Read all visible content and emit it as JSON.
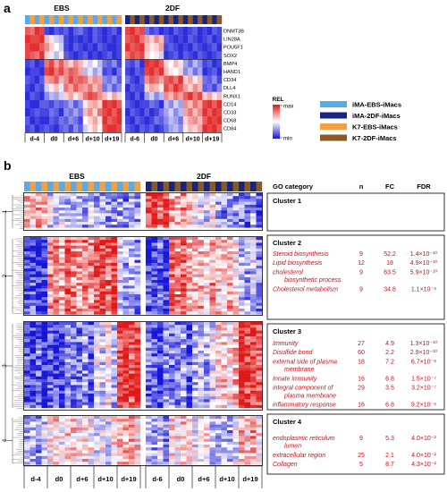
{
  "figure": {
    "panel_a_label": "a",
    "panel_b_label": "b"
  },
  "panel_a": {
    "group_left": "EBS",
    "group_right": "2DF",
    "genes": [
      "DNMT3B",
      "LIN28A",
      "POU5F1",
      "SOX2",
      "BMP4",
      "HAND1",
      "CD34",
      "DLL4",
      "RUNX1",
      "CD14",
      "CD33",
      "CD68",
      "CD84"
    ],
    "timepoints_left": [
      "d-4",
      "d0",
      "d+6",
      "d+10",
      "d+19"
    ],
    "timepoints_right": [
      "d-6",
      "d0",
      "d+6",
      "d+10",
      "d+19"
    ],
    "scale_label": "REL",
    "scale_high": "max",
    "scale_low": "min"
  },
  "legend": [
    {
      "label": "iMA-EBS-iMacs",
      "color": "#5aaae8"
    },
    {
      "label": "iMA-2DF-iMacs",
      "color": "#1a237e"
    },
    {
      "label": "K7-EBS-iMacs",
      "color": "#f5a040"
    },
    {
      "label": "K7-2DF-iMacs",
      "color": "#8a5a26"
    }
  ],
  "panel_b": {
    "group_left": "EBS",
    "group_right": "2DF",
    "timepoints_left": [
      "d-4",
      "d0",
      "d+6",
      "d+10",
      "d+19"
    ],
    "timepoints_right": [
      "d-6",
      "d0",
      "d+6",
      "d+10",
      "d+19"
    ],
    "cluster_numbers": [
      "1",
      "2",
      "3",
      "4"
    ],
    "table_headers": {
      "category": "GO category",
      "n": "n",
      "fc": "FC",
      "fdr": "FDR"
    },
    "clusters": [
      {
        "title": "Cluster 1",
        "rows": []
      },
      {
        "title": "Cluster 2",
        "rows": [
          {
            "term": "Steroid biosynthesis",
            "n": "9",
            "fc": "52.2",
            "fdr": "1.4×10⁻¹⁰"
          },
          {
            "term": "Lipid biosynthesis",
            "n": "12",
            "fc": "18",
            "fdr": "4.9×10⁻¹⁰"
          },
          {
            "term": "cholesterol",
            "term2": "biosynthetic process",
            "n": "9",
            "fc": "63.5",
            "fdr": "5.9×10⁻¹⁰"
          },
          {
            "term": "Cholesterol metabolism",
            "n": "9",
            "fc": "34.8",
            "fdr": "1.1×10⁻⁹"
          }
        ]
      },
      {
        "title": "Cluster 3",
        "rows": [
          {
            "term": "Immunity",
            "n": "27",
            "fc": "4.9",
            "fdr": "1.3×10⁻¹⁰"
          },
          {
            "term": "Disulfide bond",
            "n": "60",
            "fc": "2.2",
            "fdr": "2.9×10⁻¹⁰"
          },
          {
            "term": "external side of plasma",
            "term2": "membrane",
            "n": "18",
            "fc": "7.2",
            "fdr": "6.7×10⁻⁸"
          },
          {
            "term": "Innate immunity",
            "n": "16",
            "fc": "6.8",
            "fdr": "1.5×10⁻⁷"
          },
          {
            "term": "integral component of",
            "term2": "plasma membrane",
            "n": "29",
            "fc": "3.5",
            "fdr": "3.2×10⁻⁷"
          },
          {
            "term": "inflammatory response",
            "n": "16",
            "fc": "6.8",
            "fdr": "9.2×10⁻⁶"
          }
        ]
      },
      {
        "title": "Cluster 4",
        "rows": [
          {
            "term": "endoplasmic reticulum",
            "term2": "lumen",
            "n": "9",
            "fc": "5.3",
            "fdr": "4.0×10⁻²"
          },
          {
            "term": "extracellular region",
            "n": "25",
            "fc": "2.1",
            "fdr": "4.0×10⁻²"
          },
          {
            "term": "Collagen",
            "n": "5",
            "fc": "8.7",
            "fdr": "4.3×10⁻²"
          }
        ]
      }
    ]
  },
  "colors": {
    "heat_high": "#e01818",
    "heat_mid": "#ffffff",
    "heat_low": "#1616d8",
    "go_text": "#c0141c"
  },
  "chart_data": [
    {
      "type": "heatmap",
      "title": "",
      "xlabel": "",
      "ylabel": "",
      "rows": [
        "DNMT3B",
        "LIN28A",
        "POU5F1",
        "SOX2",
        "BMP4",
        "HAND1",
        "CD34",
        "DLL4",
        "RUNX1",
        "CD14",
        "CD33",
        "CD68",
        "CD84"
      ],
      "column_groups": [
        {
          "name": "EBS",
          "timepoints": [
            "d-4",
            "d0",
            "d+6",
            "d+10",
            "d+19"
          ],
          "columns_per_timepoint": 4
        },
        {
          "name": "2DF",
          "timepoints": [
            "d-6",
            "d0",
            "d+6",
            "d+10",
            "d+19"
          ],
          "columns_per_timepoint": 4
        }
      ],
      "scale": {
        "label": "REL",
        "range": [
          "min",
          "max"
        ]
      },
      "values_EBS": [
        [
          0.7,
          0.6,
          0.9,
          0.8,
          -0.8,
          -0.9,
          -0.7,
          -0.8,
          -0.7,
          -0.9,
          -0.7,
          -0.6,
          -0.8,
          -0.9,
          -0.7,
          -0.8,
          -0.9,
          -0.8,
          -0.7,
          -0.9
        ],
        [
          0.9,
          0.8,
          0.8,
          0.9,
          0.3,
          0.1,
          -0.2,
          -0.3,
          -0.8,
          -0.9,
          -0.8,
          -0.9,
          -0.8,
          -0.9,
          -0.7,
          -0.8,
          -0.9,
          -0.8,
          -0.9,
          -0.8
        ],
        [
          0.8,
          0.9,
          0.9,
          0.7,
          0.5,
          0.2,
          0.0,
          -0.2,
          -0.8,
          -0.9,
          -0.7,
          -0.8,
          -0.9,
          -0.8,
          -0.9,
          -0.7,
          -0.8,
          -0.9,
          -0.9,
          -0.8
        ],
        [
          0.8,
          0.7,
          0.6,
          0.9,
          0.2,
          -0.1,
          -0.3,
          0.1,
          -0.7,
          -0.8,
          -0.9,
          -0.8,
          -0.7,
          -0.9,
          -0.8,
          -0.9,
          -0.8,
          -0.7,
          -0.9,
          -0.8
        ],
        [
          -0.8,
          -0.7,
          -0.9,
          -0.8,
          0.6,
          0.8,
          0.4,
          0.7,
          0.4,
          0.2,
          0.5,
          0.3,
          0.1,
          -0.2,
          0.0,
          -0.3,
          -0.6,
          -0.7,
          -0.5,
          -0.8
        ],
        [
          -0.9,
          -0.8,
          -0.8,
          -0.9,
          0.8,
          0.9,
          0.6,
          0.8,
          0.5,
          0.7,
          0.6,
          0.4,
          -0.3,
          -0.1,
          -0.4,
          -0.2,
          -0.8,
          -0.7,
          -0.9,
          -0.6
        ],
        [
          -0.7,
          -0.8,
          -0.9,
          -0.7,
          0.4,
          0.5,
          0.7,
          0.3,
          0.5,
          0.8,
          0.6,
          0.7,
          0.6,
          0.3,
          0.5,
          0.4,
          -0.5,
          -0.6,
          -0.4,
          -0.7
        ],
        [
          -0.8,
          -0.9,
          -0.7,
          -0.8,
          -0.2,
          0.1,
          0.3,
          -0.1,
          0.6,
          0.4,
          0.7,
          0.5,
          0.4,
          0.6,
          0.3,
          0.5,
          -0.6,
          -0.4,
          -0.7,
          -0.5
        ],
        [
          -0.9,
          -0.7,
          -0.8,
          -0.9,
          -0.5,
          -0.3,
          -0.4,
          -0.2,
          0.2,
          0.4,
          0.1,
          0.3,
          0.6,
          0.8,
          0.7,
          0.5,
          0.3,
          0.1,
          0.4,
          0.2
        ],
        [
          -0.8,
          -0.9,
          -0.9,
          -0.7,
          -0.7,
          -0.8,
          -0.6,
          -0.7,
          -0.6,
          -0.4,
          -0.7,
          -0.5,
          0.1,
          0.3,
          0.4,
          0.2,
          0.9,
          0.8,
          0.9,
          0.7
        ],
        [
          -0.9,
          -0.8,
          -0.7,
          -0.8,
          -0.8,
          -0.6,
          -0.7,
          -0.9,
          -0.5,
          -0.6,
          -0.4,
          -0.6,
          0.3,
          0.5,
          0.2,
          0.6,
          0.8,
          0.9,
          0.7,
          0.9
        ],
        [
          -0.7,
          -0.9,
          -0.8,
          -0.9,
          -0.9,
          -0.7,
          -0.8,
          -0.6,
          -0.7,
          -0.5,
          -0.6,
          -0.8,
          0.0,
          0.2,
          0.4,
          0.1,
          0.9,
          0.7,
          0.8,
          0.9
        ],
        [
          -0.8,
          -0.7,
          -0.9,
          -0.8,
          -0.7,
          -0.8,
          -0.9,
          -0.7,
          -0.6,
          -0.8,
          -0.5,
          -0.7,
          -0.2,
          0.1,
          0.3,
          0.0,
          0.8,
          0.9,
          0.9,
          0.8
        ]
      ],
      "values_2DF": [
        [
          0.8,
          0.9,
          0.7,
          0.8,
          -0.6,
          -0.8,
          -0.7,
          -0.9,
          -0.8,
          -0.9,
          -0.7,
          -0.8,
          -0.9,
          -0.8,
          -0.7,
          -0.9,
          -0.8,
          -0.9,
          -0.7,
          -0.8
        ],
        [
          0.7,
          0.8,
          0.9,
          0.6,
          0.4,
          0.2,
          0.5,
          0.3,
          -0.7,
          -0.8,
          -0.9,
          -0.8,
          -0.9,
          -0.7,
          -0.8,
          -0.9,
          -0.8,
          -0.7,
          -0.9,
          -0.8
        ],
        [
          0.9,
          0.7,
          0.8,
          0.9,
          0.3,
          0.1,
          0.2,
          0.4,
          -0.8,
          -0.7,
          -0.8,
          -0.9,
          -0.8,
          -0.9,
          -0.7,
          -0.8,
          -0.9,
          -0.8,
          -0.7,
          -0.9
        ],
        [
          0.6,
          0.8,
          0.7,
          0.8,
          0.2,
          0.0,
          0.1,
          -0.2,
          -0.9,
          -0.8,
          -0.7,
          -0.9,
          -0.7,
          -0.8,
          -0.9,
          -0.7,
          -0.8,
          -0.9,
          -0.8,
          -0.7
        ],
        [
          -0.7,
          -0.8,
          -0.6,
          -0.9,
          0.9,
          0.8,
          0.9,
          0.7,
          0.2,
          0.0,
          0.3,
          0.1,
          -0.4,
          -0.6,
          -0.3,
          -0.5,
          -0.8,
          -0.7,
          -0.9,
          -0.8
        ],
        [
          -0.8,
          -0.9,
          -0.7,
          -0.8,
          0.8,
          0.9,
          0.7,
          0.9,
          0.3,
          0.1,
          0.0,
          0.2,
          -0.5,
          -0.3,
          -0.6,
          -0.4,
          -0.9,
          -0.8,
          -0.7,
          -0.9
        ],
        [
          -0.6,
          -0.8,
          -0.9,
          -0.7,
          0.5,
          0.7,
          0.6,
          0.4,
          0.7,
          0.8,
          0.6,
          0.9,
          0.2,
          0.4,
          0.1,
          0.3,
          -0.6,
          -0.7,
          -0.5,
          -0.8
        ],
        [
          -0.9,
          -0.7,
          -0.8,
          -0.8,
          0.2,
          0.4,
          0.3,
          0.1,
          0.8,
          0.6,
          0.9,
          0.7,
          0.4,
          0.2,
          0.5,
          0.3,
          -0.7,
          -0.6,
          -0.8,
          -0.5
        ],
        [
          -0.8,
          -0.9,
          -0.7,
          -0.9,
          -0.4,
          -0.2,
          -0.5,
          -0.3,
          0.5,
          0.3,
          0.6,
          0.4,
          0.7,
          0.9,
          0.6,
          0.8,
          0.2,
          0.4,
          0.1,
          0.3
        ],
        [
          -0.7,
          -0.8,
          -0.9,
          -0.8,
          -0.8,
          -0.6,
          -0.7,
          -0.9,
          -0.3,
          -0.5,
          -0.2,
          -0.4,
          0.5,
          0.3,
          0.6,
          0.4,
          0.8,
          0.9,
          0.7,
          0.9
        ],
        [
          -0.9,
          -0.7,
          -0.8,
          -0.9,
          -0.7,
          -0.9,
          -0.8,
          -0.6,
          -0.4,
          -0.2,
          -0.5,
          -0.3,
          0.4,
          0.6,
          0.3,
          0.5,
          0.9,
          0.7,
          0.9,
          0.8
        ],
        [
          -0.8,
          -0.9,
          -0.7,
          -0.8,
          -0.9,
          -0.8,
          -0.6,
          -0.7,
          -0.5,
          -0.3,
          -0.4,
          -0.6,
          0.2,
          0.4,
          0.5,
          0.3,
          0.7,
          0.9,
          0.8,
          0.9
        ],
        [
          -0.7,
          -0.8,
          -0.9,
          -0.7,
          -0.8,
          -0.7,
          -0.9,
          -0.8,
          -0.6,
          -0.4,
          -0.3,
          -0.5,
          0.1,
          0.3,
          0.2,
          0.4,
          0.9,
          0.8,
          0.9,
          0.7
        ]
      ]
    },
    {
      "type": "heatmap",
      "title": "",
      "column_groups": [
        {
          "name": "EBS",
          "timepoints": [
            "d-4",
            "d0",
            "d+6",
            "d+10",
            "d+19"
          ],
          "columns_per_timepoint": 4
        },
        {
          "name": "2DF",
          "timepoints": [
            "d-6",
            "d0",
            "d+6",
            "d+10",
            "d+19"
          ],
          "columns_per_timepoint": 4
        }
      ],
      "row_clusters": [
        "1",
        "2",
        "3",
        "4"
      ],
      "cluster_profiles_EBS": {
        "1": [
          0.3,
          0.2,
          0.4,
          0.3,
          -0.2,
          -0.3,
          -0.1,
          -0.3,
          -0.3,
          -0.2,
          -0.4,
          -0.3,
          -0.4,
          -0.3,
          -0.5,
          -0.4,
          -0.4,
          -0.5,
          -0.3,
          -0.4
        ],
        "2": [
          -0.8,
          -0.7,
          -0.9,
          -0.8,
          0.5,
          0.6,
          0.4,
          0.7,
          0.5,
          0.4,
          0.6,
          0.5,
          0.7,
          0.8,
          0.6,
          0.9,
          -0.2,
          -0.4,
          -0.3,
          -0.5
        ],
        "3": [
          -0.7,
          -0.8,
          -0.6,
          -0.9,
          -0.6,
          -0.7,
          -0.8,
          -0.5,
          -0.5,
          -0.6,
          -0.4,
          -0.7,
          -0.1,
          -0.2,
          0.1,
          -0.3,
          0.8,
          0.9,
          0.7,
          0.9
        ],
        "4": [
          -0.4,
          -0.3,
          -0.5,
          -0.2,
          0.1,
          0.2,
          0.0,
          0.3,
          0.2,
          0.1,
          0.3,
          0.0,
          -0.1,
          0.0,
          -0.2,
          0.1,
          0.4,
          0.3,
          0.5,
          0.2
        ]
      },
      "cluster_profiles_2DF": {
        "1": [
          0.8,
          0.9,
          0.7,
          0.9,
          0.4,
          0.3,
          0.5,
          0.2,
          0.0,
          -0.1,
          -0.2,
          0.1,
          -0.4,
          -0.5,
          -0.3,
          -0.5,
          -0.5,
          -0.6,
          -0.4,
          -0.6
        ],
        "2": [
          -0.7,
          -0.8,
          -0.6,
          -0.8,
          0.6,
          0.5,
          0.7,
          0.4,
          0.3,
          0.4,
          0.2,
          0.5,
          0.3,
          0.2,
          0.4,
          0.1,
          -0.3,
          -0.4,
          -0.2,
          -0.5
        ],
        "3": [
          -0.6,
          -0.7,
          -0.8,
          -0.5,
          -0.5,
          -0.6,
          -0.4,
          -0.7,
          -0.3,
          -0.2,
          -0.4,
          -0.1,
          0.2,
          0.3,
          0.1,
          0.4,
          0.9,
          0.8,
          0.9,
          0.7
        ],
        "4": [
          -0.3,
          -0.4,
          -0.2,
          -0.5,
          0.2,
          0.1,
          0.3,
          0.0,
          -0.1,
          0.0,
          0.1,
          -0.2,
          -0.3,
          -0.2,
          -0.4,
          -0.1,
          0.3,
          0.2,
          0.4,
          0.1
        ]
      }
    }
  ]
}
